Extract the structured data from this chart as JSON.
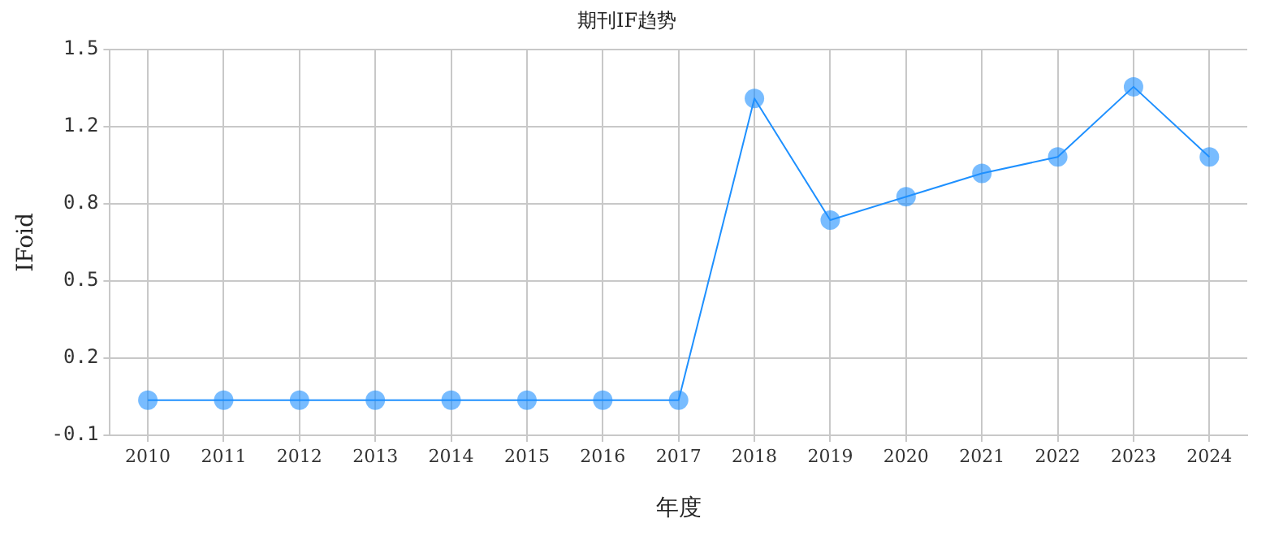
{
  "chart_data": {
    "type": "line",
    "title": "期刊IF趋势",
    "xlabel": "年度",
    "ylabel": "IFoid",
    "categories": [
      "2010",
      "2011",
      "2012",
      "2013",
      "2014",
      "2015",
      "2016",
      "2017",
      "2018",
      "2019",
      "2020",
      "2021",
      "2022",
      "2023",
      "2024"
    ],
    "series": [
      {
        "color": "#1e90ff",
        "values": [
          0,
          0,
          0,
          0,
          0,
          0,
          0,
          0,
          1.29,
          0.77,
          0.87,
          0.97,
          1.04,
          1.34,
          1.04
        ]
      }
    ],
    "ylim": [
      -0.15,
      1.5
    ],
    "yticks": [
      {
        "value": -0.15,
        "label": "-0.1"
      },
      {
        "value": 0.18,
        "label": "0.2"
      },
      {
        "value": 0.51,
        "label": "0.5"
      },
      {
        "value": 0.84,
        "label": "0.8"
      },
      {
        "value": 1.17,
        "label": "1.2"
      },
      {
        "value": 1.5,
        "label": "1.5"
      }
    ],
    "grid": true,
    "marker": "circle",
    "line_style": "solid"
  }
}
